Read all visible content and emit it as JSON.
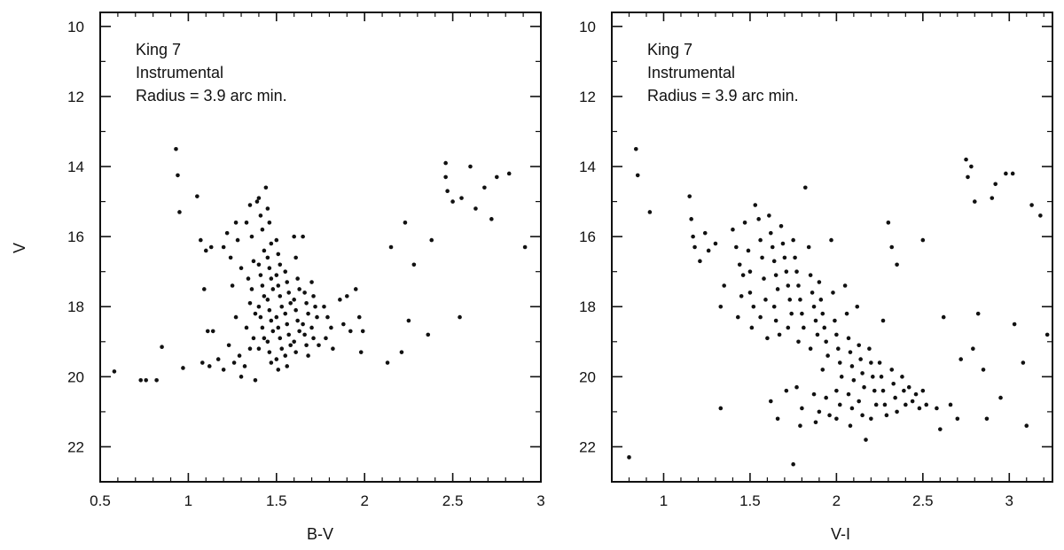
{
  "chart_data": [
    {
      "type": "scatter",
      "ylabel": "V",
      "xlabel": "B-V",
      "annotations": [
        "King 7",
        "Instrumental",
        "Radius = 3.9 arc min."
      ],
      "xlim": [
        0.5,
        3.0
      ],
      "ylim": [
        23.0,
        9.6
      ],
      "y_inverted": true,
      "x_major_ticks": [
        0.5,
        1,
        1.5,
        2,
        2.5,
        3
      ],
      "x_tick_labels": [
        "0.5",
        "1",
        "1.5",
        "2",
        "2.5",
        "3"
      ],
      "y_major_ticks": [
        10,
        12,
        14,
        16,
        18,
        20,
        22
      ],
      "y_tick_labels": [
        "10",
        "12",
        "14",
        "16",
        "18",
        "20",
        "22"
      ],
      "grid": false,
      "points": [
        [
          0.93,
          13.5
        ],
        [
          0.94,
          14.25
        ],
        [
          0.95,
          15.3
        ],
        [
          0.58,
          19.85
        ],
        [
          0.73,
          20.1
        ],
        [
          0.76,
          20.1
        ],
        [
          0.82,
          20.1
        ],
        [
          0.85,
          19.15
        ],
        [
          0.97,
          19.75
        ],
        [
          1.05,
          14.85
        ],
        [
          1.07,
          16.1
        ],
        [
          1.1,
          16.4
        ],
        [
          1.13,
          16.3
        ],
        [
          1.08,
          19.6
        ],
        [
          1.12,
          19.7
        ],
        [
          1.17,
          19.5
        ],
        [
          1.2,
          19.8
        ],
        [
          1.11,
          18.7
        ],
        [
          1.14,
          18.7
        ],
        [
          1.09,
          17.5
        ],
        [
          1.2,
          16.3
        ],
        [
          1.22,
          15.9
        ],
        [
          1.24,
          16.6
        ],
        [
          1.27,
          15.6
        ],
        [
          1.28,
          16.1
        ],
        [
          1.3,
          16.9
        ],
        [
          1.25,
          17.4
        ],
        [
          1.27,
          18.3
        ],
        [
          1.23,
          19.1
        ],
        [
          1.26,
          19.6
        ],
        [
          1.29,
          19.4
        ],
        [
          1.32,
          19.7
        ],
        [
          1.3,
          20.0
        ],
        [
          1.33,
          15.6
        ],
        [
          1.35,
          15.1
        ],
        [
          1.36,
          16.0
        ],
        [
          1.37,
          16.7
        ],
        [
          1.34,
          17.2
        ],
        [
          1.36,
          17.5
        ],
        [
          1.35,
          17.9
        ],
        [
          1.38,
          18.2
        ],
        [
          1.33,
          18.6
        ],
        [
          1.37,
          18.9
        ],
        [
          1.35,
          19.2
        ],
        [
          1.38,
          20.1
        ],
        [
          1.39,
          15.0
        ],
        [
          1.4,
          14.9
        ],
        [
          1.41,
          15.4
        ],
        [
          1.42,
          15.8
        ],
        [
          1.43,
          16.4
        ],
        [
          1.4,
          16.8
        ],
        [
          1.41,
          17.1
        ],
        [
          1.42,
          17.4
        ],
        [
          1.43,
          17.7
        ],
        [
          1.4,
          18.0
        ],
        [
          1.41,
          18.3
        ],
        [
          1.42,
          18.6
        ],
        [
          1.43,
          18.9
        ],
        [
          1.4,
          19.2
        ],
        [
          1.44,
          14.6
        ],
        [
          1.45,
          15.2
        ],
        [
          1.46,
          15.6
        ],
        [
          1.47,
          16.2
        ],
        [
          1.45,
          16.6
        ],
        [
          1.46,
          16.9
        ],
        [
          1.47,
          17.2
        ],
        [
          1.48,
          17.5
        ],
        [
          1.45,
          17.8
        ],
        [
          1.46,
          18.1
        ],
        [
          1.47,
          18.4
        ],
        [
          1.48,
          18.7
        ],
        [
          1.45,
          19.0
        ],
        [
          1.46,
          19.3
        ],
        [
          1.47,
          19.6
        ],
        [
          1.5,
          16.1
        ],
        [
          1.51,
          16.5
        ],
        [
          1.52,
          16.8
        ],
        [
          1.5,
          17.1
        ],
        [
          1.51,
          17.4
        ],
        [
          1.52,
          17.7
        ],
        [
          1.53,
          18.0
        ],
        [
          1.5,
          18.3
        ],
        [
          1.51,
          18.6
        ],
        [
          1.52,
          18.9
        ],
        [
          1.53,
          19.2
        ],
        [
          1.5,
          19.5
        ],
        [
          1.51,
          19.8
        ],
        [
          1.55,
          17.0
        ],
        [
          1.56,
          17.3
        ],
        [
          1.57,
          17.6
        ],
        [
          1.58,
          17.9
        ],
        [
          1.55,
          18.2
        ],
        [
          1.56,
          18.5
        ],
        [
          1.57,
          18.8
        ],
        [
          1.58,
          19.1
        ],
        [
          1.55,
          19.4
        ],
        [
          1.56,
          19.7
        ],
        [
          1.6,
          16.0
        ],
        [
          1.61,
          16.6
        ],
        [
          1.62,
          17.2
        ],
        [
          1.63,
          17.5
        ],
        [
          1.6,
          17.8
        ],
        [
          1.61,
          18.1
        ],
        [
          1.62,
          18.4
        ],
        [
          1.63,
          18.7
        ],
        [
          1.6,
          19.0
        ],
        [
          1.61,
          19.3
        ],
        [
          1.65,
          16.0
        ],
        [
          1.66,
          17.6
        ],
        [
          1.67,
          17.9
        ],
        [
          1.68,
          18.2
        ],
        [
          1.65,
          18.5
        ],
        [
          1.66,
          18.8
        ],
        [
          1.67,
          19.1
        ],
        [
          1.68,
          19.4
        ],
        [
          1.7,
          17.3
        ],
        [
          1.71,
          17.7
        ],
        [
          1.72,
          18.0
        ],
        [
          1.73,
          18.3
        ],
        [
          1.7,
          18.6
        ],
        [
          1.71,
          18.9
        ],
        [
          1.74,
          19.1
        ],
        [
          1.77,
          18.0
        ],
        [
          1.79,
          18.3
        ],
        [
          1.81,
          18.6
        ],
        [
          1.78,
          18.9
        ],
        [
          1.82,
          19.2
        ],
        [
          1.86,
          17.8
        ],
        [
          1.88,
          18.5
        ],
        [
          1.9,
          17.7
        ],
        [
          1.92,
          18.7
        ],
        [
          1.95,
          17.5
        ],
        [
          1.97,
          18.3
        ],
        [
          1.99,
          18.7
        ],
        [
          1.98,
          19.3
        ],
        [
          2.13,
          19.6
        ],
        [
          2.15,
          16.3
        ],
        [
          2.21,
          19.3
        ],
        [
          2.23,
          15.6
        ],
        [
          2.25,
          18.4
        ],
        [
          2.28,
          16.8
        ],
        [
          2.36,
          18.8
        ],
        [
          2.38,
          16.1
        ],
        [
          2.46,
          13.9
        ],
        [
          2.46,
          14.3
        ],
        [
          2.47,
          14.7
        ],
        [
          2.5,
          15.0
        ],
        [
          2.55,
          14.9
        ],
        [
          2.54,
          18.3
        ],
        [
          2.6,
          14.0
        ],
        [
          2.63,
          15.2
        ],
        [
          2.68,
          14.6
        ],
        [
          2.72,
          15.5
        ],
        [
          2.75,
          14.3
        ],
        [
          2.82,
          14.2
        ],
        [
          2.91,
          16.3
        ]
      ]
    },
    {
      "type": "scatter",
      "ylabel": "",
      "xlabel": "V-I",
      "annotations": [
        "King 7",
        "Instrumental",
        "Radius = 3.9 arc min."
      ],
      "xlim": [
        0.7,
        3.25
      ],
      "ylim": [
        23.0,
        9.6
      ],
      "y_inverted": true,
      "x_major_ticks": [
        1,
        1.5,
        2,
        2.5,
        3
      ],
      "x_tick_labels": [
        "1",
        "1.5",
        "2",
        "2.5",
        "3"
      ],
      "y_major_ticks": [
        10,
        12,
        14,
        16,
        18,
        20,
        22
      ],
      "y_tick_labels": [
        "10",
        "12",
        "14",
        "16",
        "18",
        "20",
        "22"
      ],
      "grid": false,
      "points": [
        [
          0.84,
          13.5
        ],
        [
          0.85,
          14.25
        ],
        [
          0.92,
          15.3
        ],
        [
          1.15,
          14.85
        ],
        [
          1.16,
          15.5
        ],
        [
          1.17,
          16.0
        ],
        [
          1.18,
          16.3
        ],
        [
          1.21,
          16.7
        ],
        [
          1.24,
          15.9
        ],
        [
          1.26,
          16.4
        ],
        [
          1.3,
          16.2
        ],
        [
          1.33,
          18.0
        ],
        [
          1.35,
          17.4
        ],
        [
          1.33,
          20.9
        ],
        [
          1.4,
          15.8
        ],
        [
          1.42,
          16.3
        ],
        [
          1.44,
          16.8
        ],
        [
          1.46,
          17.1
        ],
        [
          1.45,
          17.7
        ],
        [
          1.43,
          18.3
        ],
        [
          1.47,
          15.6
        ],
        [
          1.49,
          16.4
        ],
        [
          1.5,
          17.0
        ],
        [
          1.5,
          17.6
        ],
        [
          1.52,
          18.0
        ],
        [
          1.51,
          18.6
        ],
        [
          1.53,
          15.1
        ],
        [
          1.55,
          15.5
        ],
        [
          1.56,
          16.1
        ],
        [
          1.57,
          16.6
        ],
        [
          1.58,
          17.2
        ],
        [
          1.59,
          17.8
        ],
        [
          1.56,
          18.3
        ],
        [
          1.6,
          18.9
        ],
        [
          1.61,
          15.4
        ],
        [
          1.62,
          15.9
        ],
        [
          1.63,
          16.3
        ],
        [
          1.64,
          16.7
        ],
        [
          1.65,
          17.1
        ],
        [
          1.66,
          17.5
        ],
        [
          1.64,
          18.0
        ],
        [
          1.65,
          18.4
        ],
        [
          1.67,
          18.8
        ],
        [
          1.62,
          20.7
        ],
        [
          1.66,
          21.2
        ],
        [
          1.68,
          15.7
        ],
        [
          1.69,
          16.2
        ],
        [
          1.7,
          16.6
        ],
        [
          1.71,
          17.0
        ],
        [
          1.72,
          17.4
        ],
        [
          1.73,
          17.8
        ],
        [
          1.74,
          18.2
        ],
        [
          1.72,
          18.6
        ],
        [
          1.71,
          20.4
        ],
        [
          1.75,
          16.1
        ],
        [
          1.76,
          16.6
        ],
        [
          1.77,
          17.0
        ],
        [
          1.78,
          17.4
        ],
        [
          1.79,
          17.8
        ],
        [
          1.8,
          18.2
        ],
        [
          1.81,
          18.6
        ],
        [
          1.78,
          19.0
        ],
        [
          1.77,
          20.3
        ],
        [
          1.8,
          20.9
        ],
        [
          1.79,
          21.4
        ],
        [
          1.82,
          14.6
        ],
        [
          1.84,
          16.3
        ],
        [
          1.85,
          17.1
        ],
        [
          1.86,
          17.6
        ],
        [
          1.87,
          18.0
        ],
        [
          1.88,
          18.4
        ],
        [
          1.89,
          18.8
        ],
        [
          1.85,
          19.2
        ],
        [
          1.87,
          20.5
        ],
        [
          1.9,
          21.0
        ],
        [
          1.88,
          21.3
        ],
        [
          1.9,
          17.3
        ],
        [
          1.91,
          17.8
        ],
        [
          1.92,
          18.2
        ],
        [
          1.93,
          18.6
        ],
        [
          1.94,
          19.0
        ],
        [
          1.95,
          19.4
        ],
        [
          1.92,
          19.8
        ],
        [
          1.94,
          20.6
        ],
        [
          1.96,
          21.1
        ],
        [
          1.97,
          16.1
        ],
        [
          1.98,
          17.6
        ],
        [
          1.99,
          18.4
        ],
        [
          2.0,
          18.8
        ],
        [
          2.01,
          19.2
        ],
        [
          2.02,
          19.6
        ],
        [
          2.03,
          20.0
        ],
        [
          2.0,
          20.4
        ],
        [
          2.02,
          20.8
        ],
        [
          2.0,
          21.2
        ],
        [
          2.05,
          17.4
        ],
        [
          2.06,
          18.2
        ],
        [
          2.07,
          18.9
        ],
        [
          2.08,
          19.3
        ],
        [
          2.09,
          19.7
        ],
        [
          2.1,
          20.1
        ],
        [
          2.07,
          20.5
        ],
        [
          2.09,
          20.9
        ],
        [
          2.08,
          21.4
        ],
        [
          2.12,
          18.0
        ],
        [
          2.13,
          19.1
        ],
        [
          2.14,
          19.5
        ],
        [
          2.15,
          19.9
        ],
        [
          2.16,
          20.3
        ],
        [
          2.13,
          20.7
        ],
        [
          2.15,
          21.1
        ],
        [
          2.17,
          21.8
        ],
        [
          2.19,
          19.2
        ],
        [
          2.2,
          19.6
        ],
        [
          2.21,
          20.0
        ],
        [
          2.22,
          20.4
        ],
        [
          2.23,
          20.8
        ],
        [
          2.2,
          21.2
        ],
        [
          2.25,
          19.6
        ],
        [
          2.26,
          20.0
        ],
        [
          2.27,
          20.4
        ],
        [
          2.28,
          20.8
        ],
        [
          2.29,
          21.1
        ],
        [
          2.27,
          18.4
        ],
        [
          2.32,
          19.8
        ],
        [
          2.33,
          20.2
        ],
        [
          2.34,
          20.6
        ],
        [
          2.35,
          21.0
        ],
        [
          2.3,
          15.6
        ],
        [
          2.32,
          16.3
        ],
        [
          2.35,
          16.8
        ],
        [
          2.38,
          20.0
        ],
        [
          2.39,
          20.4
        ],
        [
          2.4,
          20.8
        ],
        [
          2.42,
          20.3
        ],
        [
          2.44,
          20.7
        ],
        [
          2.46,
          20.5
        ],
        [
          2.48,
          20.9
        ],
        [
          2.5,
          20.4
        ],
        [
          2.52,
          20.8
        ],
        [
          2.5,
          16.1
        ],
        [
          2.58,
          20.9
        ],
        [
          2.6,
          21.5
        ],
        [
          2.62,
          18.3
        ],
        [
          2.66,
          20.8
        ],
        [
          2.7,
          21.2
        ],
        [
          2.72,
          19.5
        ],
        [
          2.75,
          13.8
        ],
        [
          2.76,
          14.3
        ],
        [
          2.78,
          14.0
        ],
        [
          2.8,
          15.0
        ],
        [
          2.79,
          19.2
        ],
        [
          2.82,
          18.2
        ],
        [
          2.85,
          19.8
        ],
        [
          2.87,
          21.2
        ],
        [
          2.9,
          14.9
        ],
        [
          2.92,
          14.5
        ],
        [
          2.95,
          20.6
        ],
        [
          2.98,
          14.2
        ],
        [
          3.02,
          14.2
        ],
        [
          3.03,
          18.5
        ],
        [
          3.08,
          19.6
        ],
        [
          3.1,
          21.4
        ],
        [
          3.13,
          15.1
        ],
        [
          3.18,
          15.4
        ],
        [
          3.22,
          18.8
        ],
        [
          0.8,
          22.3
        ],
        [
          1.75,
          22.5
        ]
      ]
    }
  ]
}
